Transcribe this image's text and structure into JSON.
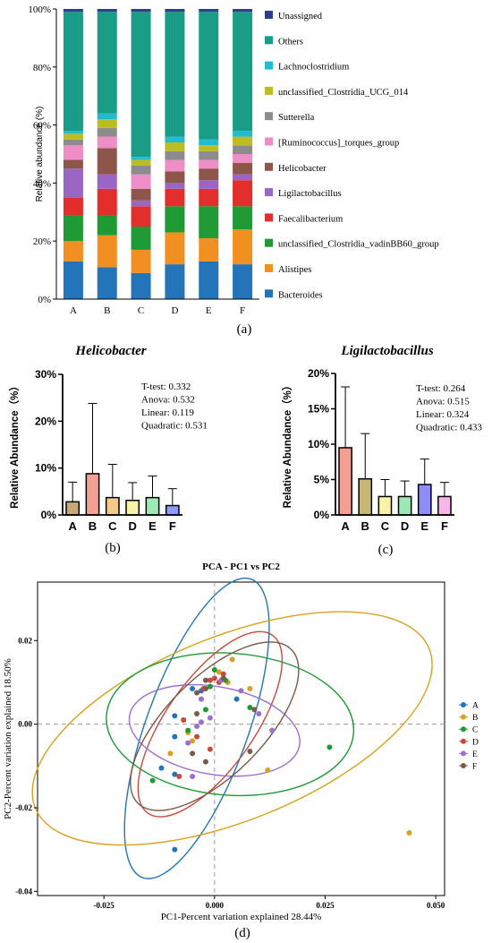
{
  "chart_data": [
    {
      "panel": "(a)",
      "type": "bar",
      "stacked": true,
      "ylabel": "Relative abundance (%)",
      "ylim": [
        0,
        100
      ],
      "yticks": [
        "0%",
        "20%",
        "40%",
        "60%",
        "80%",
        "100%"
      ],
      "categories": [
        "A",
        "B",
        "C",
        "D",
        "E",
        "F"
      ],
      "legend": "right",
      "series": [
        {
          "name": "Bacteroides",
          "color": "#2374b9",
          "values": [
            13,
            11,
            9,
            12,
            13,
            12
          ]
        },
        {
          "name": "Alistipes",
          "color": "#f18f21",
          "values": [
            7,
            11,
            8,
            11,
            8,
            12
          ]
        },
        {
          "name": "unclassified_Clostridia_vadinBB60_group",
          "color": "#1f9a35",
          "values": [
            9,
            7,
            8,
            9,
            11,
            8
          ]
        },
        {
          "name": "Faecalibacterium",
          "color": "#e32f2c",
          "values": [
            6,
            9,
            7,
            6,
            6,
            9
          ]
        },
        {
          "name": "Ligilactobacillus",
          "color": "#9a66c4",
          "values": [
            10,
            5,
            2,
            2,
            3,
            2
          ]
        },
        {
          "name": "Helicobacter",
          "color": "#8e564a",
          "values": [
            3,
            9,
            4,
            4,
            4,
            4
          ]
        },
        {
          "name": "[Ruminococcus]_torques_group",
          "color": "#ee8dc6",
          "values": [
            5,
            4,
            5,
            4,
            3,
            3
          ]
        },
        {
          "name": "Sutterella",
          "color": "#8c8c8c",
          "values": [
            2,
            3,
            3,
            3,
            3,
            3
          ]
        },
        {
          "name": "unclassified_Clostridia_UCG_014",
          "color": "#bcbd22",
          "values": [
            2,
            3,
            2,
            3,
            2,
            3
          ]
        },
        {
          "name": "Lachnoclostridium",
          "color": "#21bcd2",
          "values": [
            1,
            2,
            1,
            2,
            2,
            2
          ]
        },
        {
          "name": "Others",
          "color": "#199d87",
          "values": [
            41,
            35,
            50,
            43,
            44,
            41
          ]
        },
        {
          "name": "Unassigned",
          "color": "#2b3f8c",
          "values": [
            1,
            1,
            1,
            1,
            1,
            1
          ]
        }
      ]
    },
    {
      "panel": "(b)",
      "type": "bar",
      "title": "Helicobacter",
      "ylabel": "Relative Abundance（%）",
      "ylim": [
        0,
        30
      ],
      "yticks": [
        "0%",
        "10%",
        "20%",
        "30%"
      ],
      "categories": [
        "A",
        "B",
        "C",
        "D",
        "E",
        "F"
      ],
      "values": [
        2.8,
        8.8,
        3.7,
        3.1,
        3.7,
        2.0
      ],
      "errors": [
        4.2,
        15.0,
        7.1,
        3.8,
        4.6,
        3.6
      ],
      "colors": [
        "#c8a978",
        "#f59f93",
        "#f4c98a",
        "#f7f3a9",
        "#9ee8b5",
        "#8e9bff"
      ],
      "stats": [
        "T-test: 0.332",
        "Anova: 0.532",
        "Linear: 0.119",
        "Quadratic: 0.531"
      ]
    },
    {
      "panel": "(c)",
      "type": "bar",
      "title": "Ligilactobacillus",
      "ylabel": "Relative Abundance（%）",
      "ylim": [
        0,
        20
      ],
      "yticks": [
        "0%",
        "5%",
        "10%",
        "15%",
        "20%"
      ],
      "categories": [
        "A",
        "B",
        "C",
        "D",
        "E",
        "F"
      ],
      "values": [
        9.5,
        5.1,
        2.6,
        2.6,
        4.3,
        2.6
      ],
      "errors": [
        8.6,
        6.4,
        2.4,
        2.2,
        3.6,
        2.0
      ],
      "colors": [
        "#f59f93",
        "#c8b878",
        "#f7f3a9",
        "#9ee8b5",
        "#8e8cf7",
        "#f6b8e8"
      ],
      "stats": [
        "T-test: 0.264",
        "Anova: 0.515",
        "Linear: 0.324",
        "Quadratic: 0.433"
      ]
    },
    {
      "panel": "(d)",
      "type": "scatter",
      "title": "PCA - PC1 vs PC2",
      "xlabel": "PC1-Percent variation explained 28.44%",
      "ylabel": "PC2-Percent variation explained 18.50%",
      "xlim": [
        -0.04,
        0.052
      ],
      "ylim": [
        -0.041,
        0.034
      ],
      "xticks": [
        -0.025,
        0.0,
        0.025,
        0.05
      ],
      "xtick_labels": [
        "-0.025",
        "0.000",
        "0.025",
        "0.050"
      ],
      "yticks": [
        -0.04,
        -0.02,
        0.0,
        0.02
      ],
      "ytick_labels": [
        "-0.04",
        "-0.02",
        "0.00",
        "0.02"
      ],
      "legend": "right",
      "series": [
        {
          "name": "A",
          "color": "#2374b9",
          "points": [
            [
              -0.005,
              0.0085
            ],
            [
              -0.003,
              0.008
            ],
            [
              -0.001,
              0.009
            ],
            [
              0.005,
              0.006
            ],
            [
              -0.012,
              -0.0105
            ],
            [
              -0.009,
              -0.003
            ],
            [
              -0.009,
              0.002
            ],
            [
              -0.009,
              -0.012
            ],
            [
              -0.009,
              -0.03
            ]
          ],
          "ellipse": {
            "cx": -0.004,
            "cy": -0.001,
            "rx": 0.0115,
            "ry": 0.038,
            "angle": 20
          }
        },
        {
          "name": "B",
          "color": "#d7a11e",
          "points": [
            [
              0.004,
              0.0155
            ],
            [
              0.001,
              0.0125
            ],
            [
              -0.007,
              0.001
            ],
            [
              -0.006,
              -0.002
            ],
            [
              -0.005,
              -0.004
            ],
            [
              -0.01,
              -0.007
            ],
            [
              0.008,
              0.0085
            ],
            [
              0.012,
              -0.011
            ],
            [
              0.044,
              -0.026
            ],
            [
              0.003,
              0.01
            ]
          ],
          "ellipse": {
            "cx": 0.004,
            "cy": -0.001,
            "rx": 0.048,
            "ry": 0.022,
            "angle": -22
          }
        },
        {
          "name": "C",
          "color": "#1f9a35",
          "points": [
            [
              0.0,
              0.013
            ],
            [
              0.0025,
              0.0105
            ],
            [
              0.008,
              0.004
            ],
            [
              -0.002,
              0.0035
            ],
            [
              -0.006,
              -0.0015
            ],
            [
              -0.014,
              -0.0135
            ],
            [
              0.026,
              -0.0055
            ],
            [
              -0.001,
              0.009
            ]
          ],
          "ellipse": {
            "cx": 0.0035,
            "cy": 0.0,
            "rx": 0.028,
            "ry": 0.017,
            "angle": 4
          }
        },
        {
          "name": "D",
          "color": "#c94a3d",
          "points": [
            [
              0.0,
              0.011
            ],
            [
              -0.001,
              0.0105
            ],
            [
              0.002,
              0.012
            ],
            [
              -0.0025,
              0.0085
            ],
            [
              -0.007,
              0.001
            ],
            [
              -0.004,
              -0.003
            ],
            [
              -0.001,
              -0.006
            ],
            [
              -0.008,
              -0.0125
            ],
            [
              0.001,
              0.01
            ]
          ],
          "ellipse": {
            "cx": -0.001,
            "cy": 0.0,
            "rx": 0.01,
            "ry": 0.026,
            "angle": 35
          }
        },
        {
          "name": "E",
          "color": "#9b6fd0",
          "points": [
            [
              0.006,
              0.008
            ],
            [
              0.01,
              0.0025
            ],
            [
              0.013,
              -0.0015
            ],
            [
              -0.003,
              0.0005
            ],
            [
              -0.006,
              -0.0045
            ],
            [
              -0.005,
              -0.0125
            ],
            [
              -0.001,
              0.0015
            ],
            [
              -0.003,
              0.006
            ],
            [
              0.0015,
              0.0105
            ],
            [
              -0.004,
              -0.0005
            ]
          ],
          "ellipse": {
            "cx": 0.0,
            "cy": -0.0015,
            "rx": 0.0195,
            "ry": 0.0105,
            "angle": 10
          }
        },
        {
          "name": "F",
          "color": "#7a5a48",
          "points": [
            [
              0.002,
              0.011
            ],
            [
              -0.002,
              0.0105
            ],
            [
              -0.004,
              0.0075
            ],
            [
              0.009,
              0.0035
            ],
            [
              0.008,
              -0.0065
            ],
            [
              -0.005,
              -0.007
            ],
            [
              -0.002,
              -0.009
            ],
            [
              -0.004,
              0.0025
            ],
            [
              -0.002,
              0.0085
            ]
          ],
          "ellipse": {
            "cx": 0.0,
            "cy": -0.0005,
            "rx": 0.011,
            "ry": 0.026,
            "angle": 45
          }
        }
      ]
    }
  ],
  "labels": {
    "a": "(a)",
    "b": "(b)",
    "c": "(c)",
    "d": "(d)"
  }
}
